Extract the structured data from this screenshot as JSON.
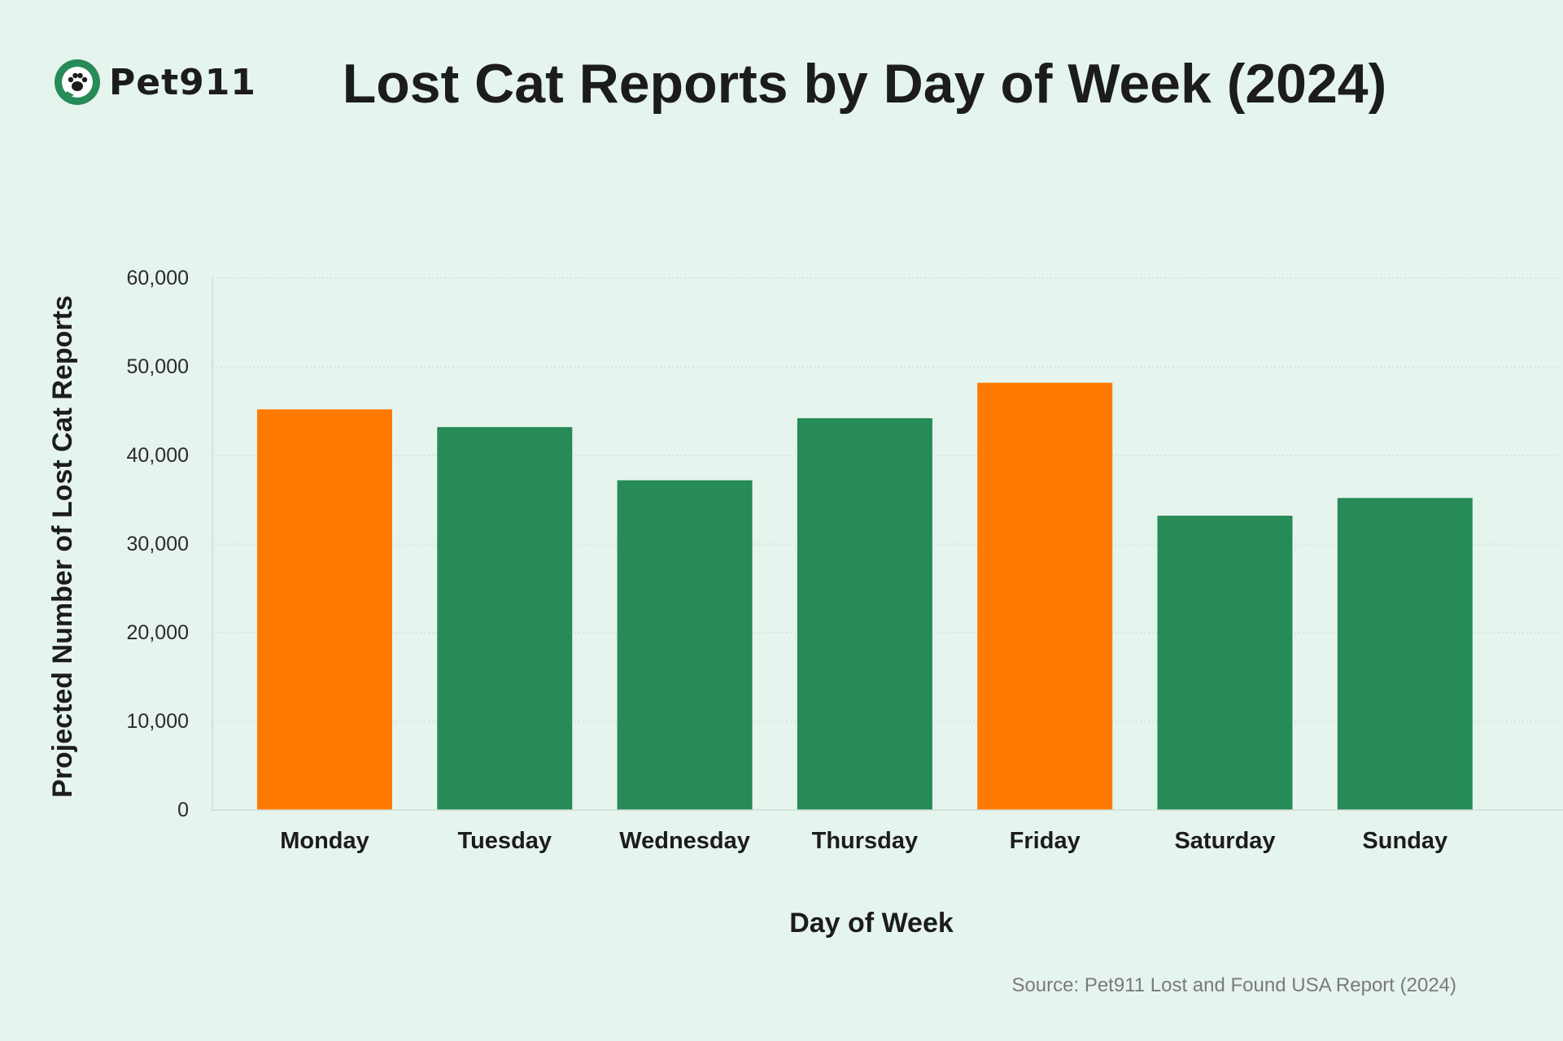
{
  "header": {
    "logo_text": "Pet911"
  },
  "footer": {
    "source": "Source: Pet911 Lost and Found USA Report (2024)"
  },
  "colors": {
    "background": "#e6f4ee",
    "highlight": "#ff7a00",
    "default": "#268b57",
    "text": "#1c1c1c",
    "gridline": "#d3dfd9"
  },
  "chart_data": {
    "type": "bar",
    "title": "Lost Cat Reports by Day of Week (2024)",
    "xlabel": "Day of Week",
    "ylabel": "Projected Number of Lost Cat Reports",
    "categories": [
      "Monday",
      "Tuesday",
      "Wednesday",
      "Thursday",
      "Friday",
      "Saturday",
      "Sunday"
    ],
    "values": [
      45200,
      43200,
      37200,
      44200,
      48200,
      33200,
      35200
    ],
    "highlighted": [
      "Monday",
      "Friday"
    ],
    "ylim": [
      0,
      60000
    ],
    "yticks": [
      0,
      10000,
      20000,
      30000,
      40000,
      50000,
      60000
    ],
    "ytick_labels": [
      "0",
      "10,000",
      "20,000",
      "30,000",
      "40,000",
      "50,000",
      "60,000"
    ],
    "grid": true,
    "legend": "none"
  }
}
